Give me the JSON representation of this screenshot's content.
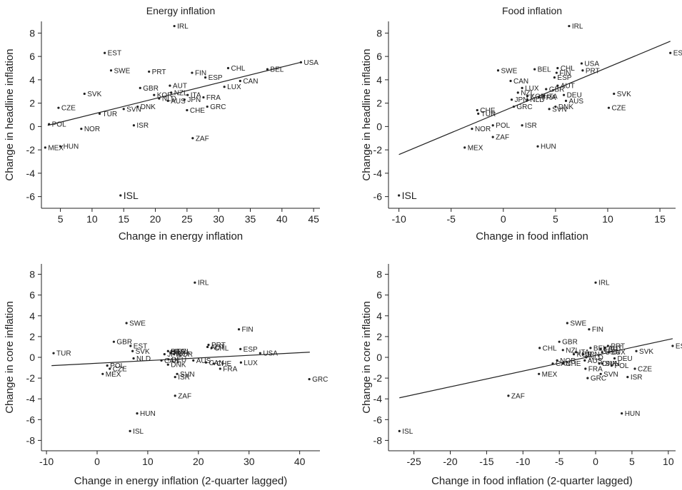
{
  "figure": {
    "background": "#ffffff",
    "ink": "#222222"
  },
  "chart_data": [
    {
      "type": "scatter",
      "title": "Energy inflation",
      "xlabel": "Change in energy inflation",
      "ylabel": "Change in headline inflation",
      "xlim": [
        2,
        46
      ],
      "ylim": [
        -7,
        9
      ],
      "xticks": [
        5,
        10,
        15,
        20,
        25,
        30,
        35,
        40,
        45
      ],
      "yticks": [
        -6,
        -4,
        -2,
        0,
        2,
        4,
        6,
        8
      ],
      "fit": {
        "x": [
          3,
          43
        ],
        "y": [
          0.1,
          5.5
        ]
      },
      "points": [
        {
          "label": "IRL",
          "x": 23,
          "y": 8.6
        },
        {
          "label": "EST",
          "x": 12,
          "y": 6.3
        },
        {
          "label": "USA",
          "x": 43,
          "y": 5.5
        },
        {
          "label": "CHL",
          "x": 31.5,
          "y": 5.0
        },
        {
          "label": "BEL",
          "x": 37.7,
          "y": 4.9
        },
        {
          "label": "SWE",
          "x": 13,
          "y": 4.8
        },
        {
          "label": "PRT",
          "x": 19,
          "y": 4.7
        },
        {
          "label": "FIN",
          "x": 25.8,
          "y": 4.6
        },
        {
          "label": "ESP",
          "x": 27.9,
          "y": 4.2
        },
        {
          "label": "CAN",
          "x": 33.4,
          "y": 3.9
        },
        {
          "label": "AUT",
          "x": 22.3,
          "y": 3.5
        },
        {
          "label": "LUX",
          "x": 30.9,
          "y": 3.4
        },
        {
          "label": "GBR",
          "x": 17.6,
          "y": 3.3
        },
        {
          "label": "NZL",
          "x": 22.5,
          "y": 2.9
        },
        {
          "label": "SVK",
          "x": 8.8,
          "y": 2.8
        },
        {
          "label": "KOR",
          "x": 19.8,
          "y": 2.7
        },
        {
          "label": "ITA",
          "x": 25.1,
          "y": 2.7
        },
        {
          "label": "FRA",
          "x": 27.6,
          "y": 2.5
        },
        {
          "label": "JPN",
          "x": 24.6,
          "y": 2.3
        },
        {
          "label": "NLD",
          "x": 20.6,
          "y": 2.4
        },
        {
          "label": "AUS",
          "x": 22.0,
          "y": 2.2
        },
        {
          "label": "CZE",
          "x": 4.7,
          "y": 1.6
        },
        {
          "label": "DNK",
          "x": 17.2,
          "y": 1.7
        },
        {
          "label": "SVN",
          "x": 15.0,
          "y": 1.5
        },
        {
          "label": "GRC",
          "x": 28.2,
          "y": 1.7
        },
        {
          "label": "CHE",
          "x": 25.0,
          "y": 1.4
        },
        {
          "label": "TUR",
          "x": 11.2,
          "y": 1.1
        },
        {
          "label": "POL",
          "x": 3.2,
          "y": 0.2
        },
        {
          "label": "ISR",
          "x": 16.6,
          "y": 0.1
        },
        {
          "label": "NOR",
          "x": 8.3,
          "y": -0.2
        },
        {
          "label": "ZAF",
          "x": 25.9,
          "y": -1.0
        },
        {
          "label": "HUN",
          "x": 5.0,
          "y": -1.7
        },
        {
          "label": "MEX",
          "x": 2.6,
          "y": -1.8
        },
        {
          "label": "ISL",
          "x": 14.5,
          "y": -5.9,
          "big": true
        }
      ]
    },
    {
      "type": "scatter",
      "title": "Food inflation",
      "xlabel": "Change in food inflation",
      "ylabel": "Change in headline inflation",
      "xlim": [
        -11,
        16.5
      ],
      "ylim": [
        -7,
        9
      ],
      "xticks": [
        -10,
        -5,
        0,
        5,
        10,
        15
      ],
      "yticks": [
        -6,
        -4,
        -2,
        0,
        2,
        4,
        6,
        8
      ],
      "fit": {
        "x": [
          -10,
          16
        ],
        "y": [
          -2.4,
          7.3
        ]
      },
      "points": [
        {
          "label": "IRL",
          "x": 6.3,
          "y": 8.6
        },
        {
          "label": "EST",
          "x": 16,
          "y": 6.3
        },
        {
          "label": "USA",
          "x": 7.5,
          "y": 5.4
        },
        {
          "label": "CHL",
          "x": 5.2,
          "y": 5.0
        },
        {
          "label": "BEL",
          "x": 3.0,
          "y": 4.9
        },
        {
          "label": "PRT",
          "x": 7.6,
          "y": 4.8
        },
        {
          "label": "SWE",
          "x": -0.5,
          "y": 4.8
        },
        {
          "label": "FIN",
          "x": 5.1,
          "y": 4.6
        },
        {
          "label": "ESP",
          "x": 4.9,
          "y": 4.2
        },
        {
          "label": "CAN",
          "x": 0.7,
          "y": 3.9
        },
        {
          "label": "AUT",
          "x": 5.2,
          "y": 3.5
        },
        {
          "label": "LUX",
          "x": 1.8,
          "y": 3.3
        },
        {
          "label": "GBR",
          "x": 4.1,
          "y": 3.2
        },
        {
          "label": "NZL",
          "x": 1.4,
          "y": 2.9
        },
        {
          "label": "SVK",
          "x": 10.6,
          "y": 2.8
        },
        {
          "label": "DEU",
          "x": 5.8,
          "y": 2.7
        },
        {
          "label": "KOR",
          "x": 2.3,
          "y": 2.6
        },
        {
          "label": "ITA",
          "x": 3.9,
          "y": 2.6
        },
        {
          "label": "FRA",
          "x": 3.4,
          "y": 2.5
        },
        {
          "label": "JPN",
          "x": 0.8,
          "y": 2.3
        },
        {
          "label": "NLD",
          "x": 2.3,
          "y": 2.3
        },
        {
          "label": "AUS",
          "x": 6.0,
          "y": 2.2
        },
        {
          "label": "GRC",
          "x": 1.0,
          "y": 1.7
        },
        {
          "label": "CZE",
          "x": 10.1,
          "y": 1.6
        },
        {
          "label": "DNK",
          "x": 5.0,
          "y": 1.7
        },
        {
          "label": "SVN",
          "x": 4.4,
          "y": 1.5
        },
        {
          "label": "CHE",
          "x": -2.5,
          "y": 1.4
        },
        {
          "label": "TUR",
          "x": -2.4,
          "y": 1.1
        },
        {
          "label": "POL",
          "x": -1.0,
          "y": 0.1
        },
        {
          "label": "ISR",
          "x": 1.8,
          "y": 0.1
        },
        {
          "label": "NOR",
          "x": -3.0,
          "y": -0.2
        },
        {
          "label": "ZAF",
          "x": -1.0,
          "y": -0.9
        },
        {
          "label": "HUN",
          "x": 3.3,
          "y": -1.7
        },
        {
          "label": "MEX",
          "x": -3.7,
          "y": -1.8
        },
        {
          "label": "ISL",
          "x": -10.0,
          "y": -5.9,
          "big": true
        }
      ]
    },
    {
      "type": "scatter",
      "title": "",
      "xlabel": "Change in energy inflation (2-quarter lagged)",
      "ylabel": "Change in core inflation",
      "xlim": [
        -11,
        44
      ],
      "ylim": [
        -9,
        9
      ],
      "xticks": [
        -10,
        0,
        10,
        20,
        30,
        40
      ],
      "yticks": [
        -8,
        -6,
        -4,
        -2,
        0,
        2,
        4,
        6,
        8
      ],
      "fit": {
        "x": [
          -9,
          42
        ],
        "y": [
          -0.8,
          0.5
        ]
      },
      "points": [
        {
          "label": "IRL",
          "x": 19.3,
          "y": 7.2
        },
        {
          "label": "SWE",
          "x": 5.8,
          "y": 3.3
        },
        {
          "label": "FIN",
          "x": 28,
          "y": 2.7
        },
        {
          "label": "GBR",
          "x": 3.3,
          "y": 1.5
        },
        {
          "label": "EST",
          "x": 6.6,
          "y": 1.1
        },
        {
          "label": "PRT",
          "x": 22.0,
          "y": 1.2
        },
        {
          "label": "AUT",
          "x": 21.8,
          "y": 1.0
        },
        {
          "label": "CHL",
          "x": 22.6,
          "y": 0.9
        },
        {
          "label": "ESP",
          "x": 28.3,
          "y": 0.8
        },
        {
          "label": "SVK",
          "x": 7.0,
          "y": 0.6
        },
        {
          "label": "BEL",
          "x": 14.0,
          "y": 0.6
        },
        {
          "label": "ITA",
          "x": 14.7,
          "y": 0.6
        },
        {
          "label": "NZL",
          "x": 15.2,
          "y": 0.6
        },
        {
          "label": "KOR",
          "x": 14.5,
          "y": 0.4
        },
        {
          "label": "NOR",
          "x": 15.2,
          "y": 0.3
        },
        {
          "label": "JPN",
          "x": 13.3,
          "y": 0.3
        },
        {
          "label": "USA",
          "x": 32.2,
          "y": 0.4
        },
        {
          "label": "TUR",
          "x": -8.6,
          "y": 0.4
        },
        {
          "label": "NLD",
          "x": 7.2,
          "y": -0.1
        },
        {
          "label": "DEU",
          "x": 14.1,
          "y": -0.2
        },
        {
          "label": "CAN",
          "x": 12.7,
          "y": -0.3
        },
        {
          "label": "AUS",
          "x": 19.0,
          "y": -0.3
        },
        {
          "label": "CAN",
          "x": 21.5,
          "y": -0.5
        },
        {
          "label": "CHE",
          "x": 23.0,
          "y": -0.6
        },
        {
          "label": "LUX",
          "x": 28.4,
          "y": -0.5
        },
        {
          "label": "DNK",
          "x": 14.0,
          "y": -0.7
        },
        {
          "label": "POL",
          "x": 2.0,
          "y": -0.8
        },
        {
          "label": "CZE",
          "x": 2.5,
          "y": -1.1
        },
        {
          "label": "FRA",
          "x": 24.3,
          "y": -1.1
        },
        {
          "label": "MEX",
          "x": 1.1,
          "y": -1.6
        },
        {
          "label": "SVN",
          "x": 15.8,
          "y": -1.6
        },
        {
          "label": "ISR",
          "x": 15.4,
          "y": -1.9
        },
        {
          "label": "GRC",
          "x": 41.9,
          "y": -2.1
        },
        {
          "label": "ZAF",
          "x": 15.4,
          "y": -3.7
        },
        {
          "label": "HUN",
          "x": 7.9,
          "y": -5.4
        },
        {
          "label": "ISL",
          "x": 6.5,
          "y": -7.1
        }
      ]
    },
    {
      "type": "scatter",
      "title": "",
      "xlabel": "Change in food inflation (2-quarter lagged)",
      "ylabel": "Change in core inflation",
      "xlim": [
        -28.5,
        11
      ],
      "ylim": [
        -9,
        9
      ],
      "xticks": [
        -25,
        -20,
        -15,
        -10,
        -5,
        0,
        5,
        10
      ],
      "yticks": [
        -8,
        -6,
        -4,
        -2,
        0,
        2,
        4,
        6,
        8
      ],
      "fit": {
        "x": [
          -27,
          10.6
        ],
        "y": [
          -3.9,
          1.8
        ]
      },
      "points": [
        {
          "label": "IRL",
          "x": 0,
          "y": 7.2
        },
        {
          "label": "SWE",
          "x": -3.9,
          "y": 3.3
        },
        {
          "label": "FIN",
          "x": -0.9,
          "y": 2.7
        },
        {
          "label": "GBR",
          "x": -5.0,
          "y": 1.5
        },
        {
          "label": "EST",
          "x": 10.6,
          "y": 1.1
        },
        {
          "label": "PRT",
          "x": 1.7,
          "y": 1.1
        },
        {
          "label": "CHL",
          "x": -7.7,
          "y": 0.9
        },
        {
          "label": "BEL",
          "x": -0.7,
          "y": 0.9
        },
        {
          "label": "ESP",
          "x": 0.7,
          "y": 0.8
        },
        {
          "label": "AUT",
          "x": 1.3,
          "y": 0.9
        },
        {
          "label": "NZL",
          "x": -4.5,
          "y": 0.7
        },
        {
          "label": "ITA",
          "x": -2.7,
          "y": 0.5
        },
        {
          "label": "SVK",
          "x": 5.6,
          "y": 0.6
        },
        {
          "label": "USA",
          "x": 0.9,
          "y": 0.5
        },
        {
          "label": "LUX",
          "x": 1.8,
          "y": 0.5
        },
        {
          "label": "KOR",
          "x": -3.0,
          "y": 0.3
        },
        {
          "label": "JPN",
          "x": -1.7,
          "y": 0.3
        },
        {
          "label": "NLD",
          "x": -1.3,
          "y": 0.0
        },
        {
          "label": "DEU",
          "x": 2.6,
          "y": -0.1
        },
        {
          "label": "NOR",
          "x": -5.3,
          "y": -0.3
        },
        {
          "label": "AUS",
          "x": -1.5,
          "y": -0.3
        },
        {
          "label": "CAN",
          "x": -5.9,
          "y": -0.6
        },
        {
          "label": "CHE",
          "x": -4.5,
          "y": -0.6
        },
        {
          "label": "DNK",
          "x": 0.5,
          "y": -0.6
        },
        {
          "label": "SVN",
          "x": 0.9,
          "y": -0.6
        },
        {
          "label": "POL",
          "x": 2.2,
          "y": -0.8
        },
        {
          "label": "CZE",
          "x": 5.4,
          "y": -1.1
        },
        {
          "label": "FRA",
          "x": -1.4,
          "y": -1.1
        },
        {
          "label": "MEX",
          "x": -7.8,
          "y": -1.6
        },
        {
          "label": "SVN",
          "x": 0.7,
          "y": -1.6
        },
        {
          "label": "ISR",
          "x": 4.4,
          "y": -1.9
        },
        {
          "label": "GRC",
          "x": -1.1,
          "y": -2.0
        },
        {
          "label": "ZAF",
          "x": -12.0,
          "y": -3.7
        },
        {
          "label": "HUN",
          "x": 3.6,
          "y": -5.4
        },
        {
          "label": "ISL",
          "x": -27.0,
          "y": -7.1
        }
      ]
    }
  ]
}
